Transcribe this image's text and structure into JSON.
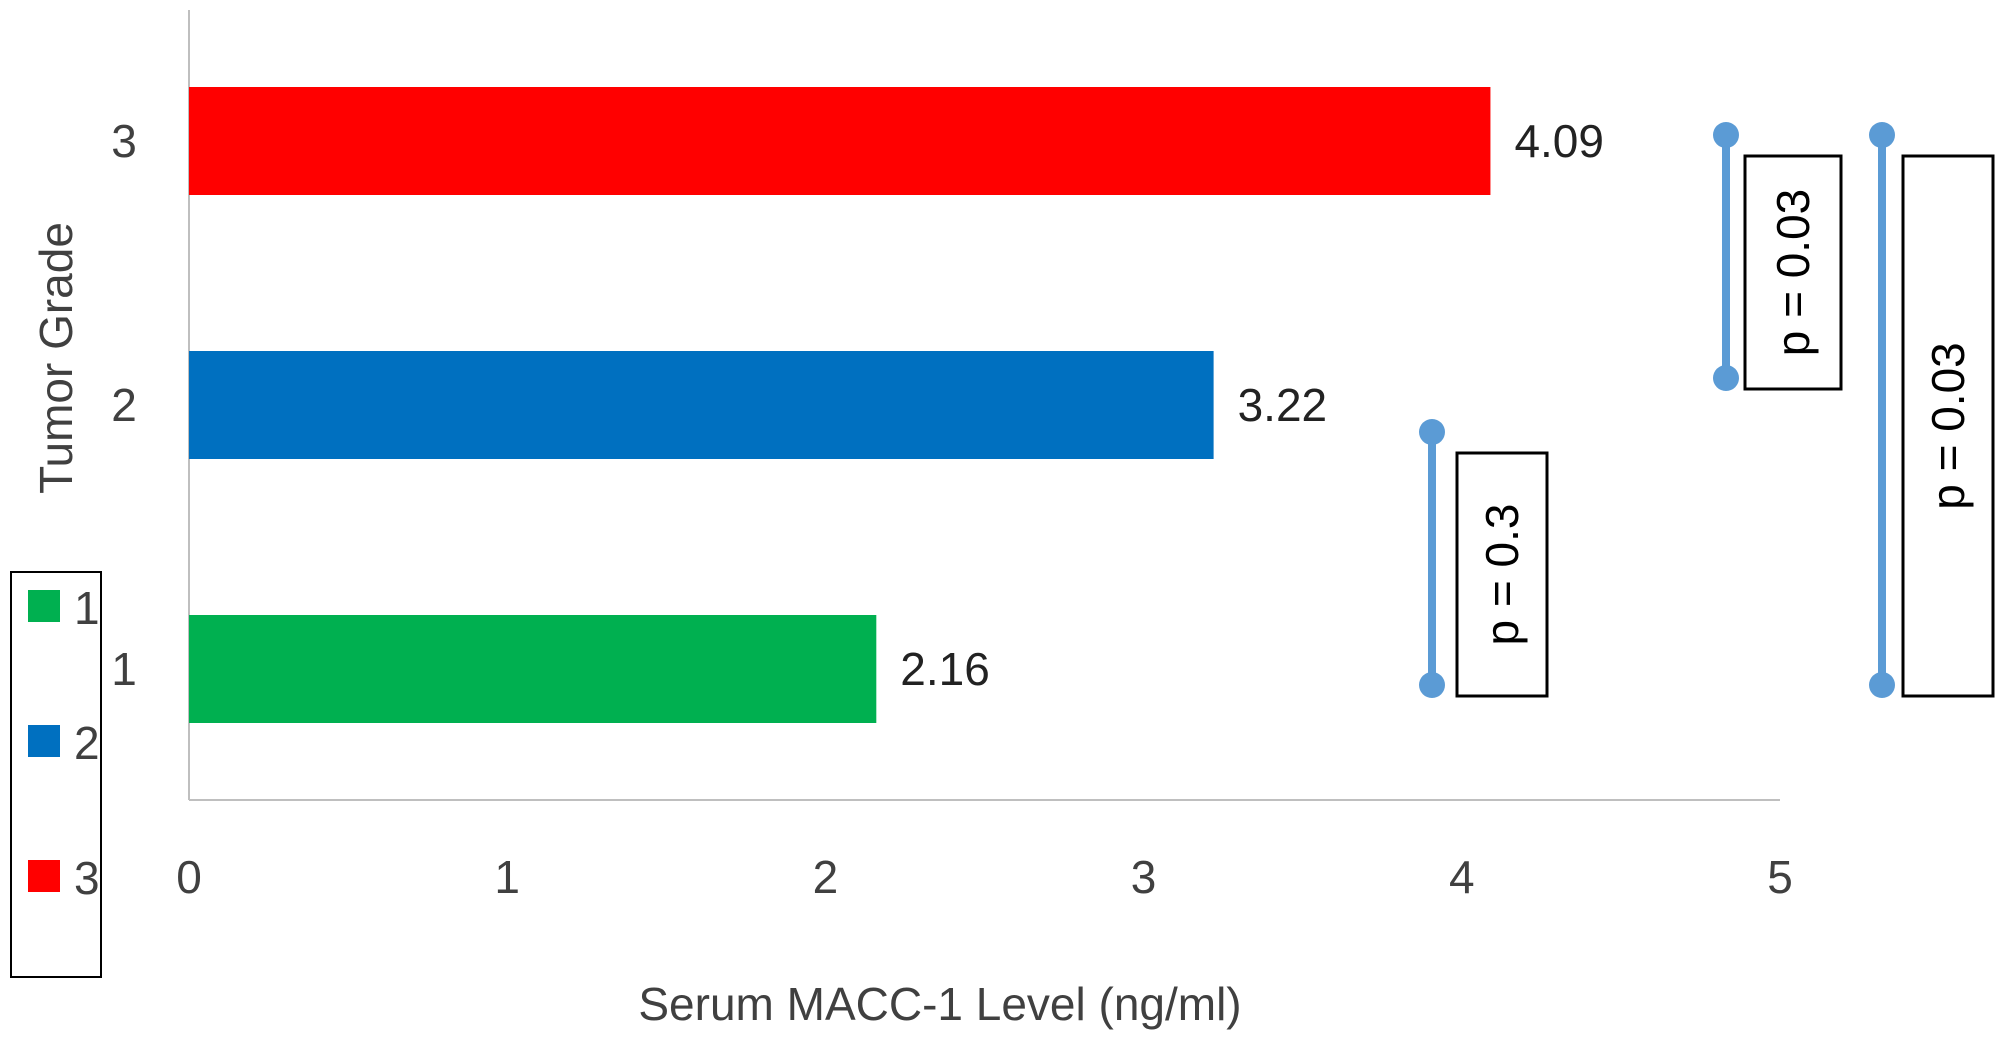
{
  "chart_data": {
    "type": "bar",
    "orientation": "horizontal",
    "categories": [
      "1",
      "2",
      "3"
    ],
    "values": [
      2.16,
      3.22,
      4.09
    ],
    "data_labels": [
      "2.16",
      "3.22",
      "4.09"
    ],
    "colors": [
      "#00b050",
      "#0070c0",
      "#ff0000"
    ],
    "xlabel": "Serum MACC-1 Level (ng/ml)",
    "ylabel": "Tumor Grade",
    "xlim": [
      0,
      5
    ],
    "xticks": [
      "0",
      "1",
      "2",
      "3",
      "4",
      "5"
    ],
    "grid": false,
    "legend": {
      "placement": "bottom-left",
      "entries": [
        "1",
        "2",
        "3"
      ]
    },
    "annotations": [
      {
        "from": "1",
        "to": "2",
        "label": "p = 0.3"
      },
      {
        "from": "2",
        "to": "3",
        "label": "p = 0.03"
      },
      {
        "from": "1",
        "to": "3",
        "label": "p = 0.03"
      }
    ],
    "bracket_color": "#5b9bd5"
  }
}
